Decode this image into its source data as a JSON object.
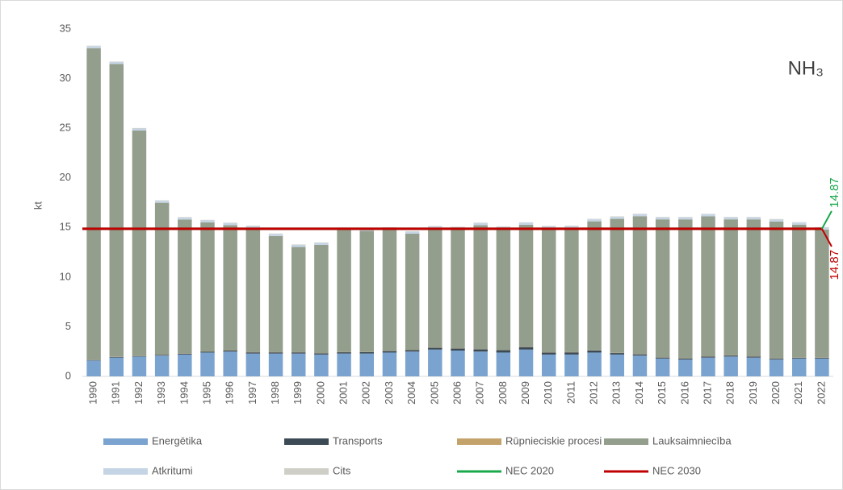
{
  "chart_data": {
    "type": "stacked_bar_line",
    "title": "NH₃",
    "y_label": "kt",
    "categories": [
      "1990",
      "1991",
      "1992",
      "1993",
      "1994",
      "1995",
      "1996",
      "1997",
      "1998",
      "1999",
      "2000",
      "2001",
      "2002",
      "2003",
      "2004",
      "2005",
      "2006",
      "2007",
      "2008",
      "2009",
      "2010",
      "2011",
      "2012",
      "2013",
      "2014",
      "2015",
      "2016",
      "2017",
      "2018",
      "2019",
      "2020",
      "2021",
      "2022"
    ],
    "ylim": [
      0,
      35
    ],
    "yticks": [
      0,
      5,
      10,
      15,
      20,
      25,
      30,
      35
    ],
    "series": [
      {
        "name": "Energētika",
        "color": "#7ba3cf",
        "kind": "bar",
        "values": [
          1.6,
          1.9,
          2.0,
          2.1,
          2.2,
          2.4,
          2.5,
          2.3,
          2.3,
          2.3,
          2.2,
          2.3,
          2.3,
          2.4,
          2.5,
          2.7,
          2.6,
          2.5,
          2.4,
          2.7,
          2.2,
          2.2,
          2.4,
          2.2,
          2.1,
          1.8,
          1.7,
          1.9,
          2.0,
          1.9,
          1.7,
          1.8,
          1.8
        ]
      },
      {
        "name": "Transports",
        "color": "#3b4a55",
        "kind": "bar",
        "values": [
          0.05,
          0.05,
          0.05,
          0.07,
          0.08,
          0.1,
          0.12,
          0.12,
          0.12,
          0.12,
          0.12,
          0.13,
          0.14,
          0.15,
          0.16,
          0.18,
          0.2,
          0.22,
          0.24,
          0.25,
          0.2,
          0.22,
          0.2,
          0.15,
          0.12,
          0.1,
          0.1,
          0.1,
          0.1,
          0.1,
          0.08,
          0.07,
          0.07
        ]
      },
      {
        "name": "Rūpnieciskie procesi",
        "color": "#c4a26c",
        "kind": "bar",
        "values": [
          0.02,
          0.02,
          0.02,
          0.02,
          0.02,
          0.02,
          0.02,
          0.02,
          0.02,
          0.02,
          0.02,
          0.02,
          0.02,
          0.02,
          0.02,
          0.02,
          0.02,
          0.02,
          0.02,
          0.02,
          0.02,
          0.02,
          0.02,
          0.02,
          0.02,
          0.02,
          0.02,
          0.02,
          0.02,
          0.02,
          0.02,
          0.02,
          0.02
        ]
      },
      {
        "name": "Lauksaimniecība",
        "color": "#949e8c",
        "kind": "bar",
        "values": [
          31.4,
          29.5,
          22.7,
          15.3,
          13.5,
          13.0,
          12.6,
          12.5,
          11.7,
          10.6,
          10.9,
          12.3,
          12.2,
          12.2,
          11.7,
          12.0,
          12.0,
          12.5,
          12.2,
          12.3,
          12.5,
          12.5,
          13.0,
          13.5,
          13.9,
          13.9,
          14.0,
          14.1,
          13.7,
          13.8,
          13.8,
          13.4,
          12.9
        ]
      },
      {
        "name": "Atkritumi",
        "color": "#c5d5e6",
        "kind": "bar",
        "values": [
          0.2,
          0.2,
          0.2,
          0.2,
          0.2,
          0.2,
          0.2,
          0.2,
          0.2,
          0.2,
          0.2,
          0.2,
          0.2,
          0.2,
          0.2,
          0.2,
          0.2,
          0.2,
          0.2,
          0.2,
          0.2,
          0.2,
          0.2,
          0.2,
          0.2,
          0.2,
          0.2,
          0.2,
          0.2,
          0.2,
          0.2,
          0.2,
          0.2
        ]
      },
      {
        "name": "Cits",
        "color": "#cfcfc8",
        "kind": "bar",
        "values": [
          0.05,
          0.05,
          0.05,
          0.05,
          0.05,
          0.05,
          0.05,
          0.05,
          0.05,
          0.05,
          0.05,
          0.05,
          0.05,
          0.05,
          0.05,
          0.05,
          0.05,
          0.05,
          0.05,
          0.05,
          0.05,
          0.05,
          0.05,
          0.05,
          0.05,
          0.05,
          0.05,
          0.05,
          0.05,
          0.05,
          0.05,
          0.05,
          0.05
        ]
      },
      {
        "name": "NEC 2020",
        "color": "#19a84b",
        "kind": "line",
        "values": [
          14.87,
          14.87,
          14.87,
          14.87,
          14.87,
          14.87,
          14.87,
          14.87,
          14.87,
          14.87,
          14.87,
          14.87,
          14.87,
          14.87,
          14.87,
          14.87,
          14.87,
          14.87,
          14.87,
          14.87,
          14.87,
          14.87,
          14.87,
          14.87,
          14.87,
          14.87,
          14.87,
          14.87,
          14.87,
          14.87,
          14.87,
          14.87,
          14.87
        ]
      },
      {
        "name": "NEC 2030",
        "color": "#c00000",
        "kind": "line",
        "values": [
          14.87,
          14.87,
          14.87,
          14.87,
          14.87,
          14.87,
          14.87,
          14.87,
          14.87,
          14.87,
          14.87,
          14.87,
          14.87,
          14.87,
          14.87,
          14.87,
          14.87,
          14.87,
          14.87,
          14.87,
          14.87,
          14.87,
          14.87,
          14.87,
          14.87,
          14.87,
          14.87,
          14.87,
          14.87,
          14.87,
          14.87,
          14.87,
          14.87
        ]
      }
    ]
  }
}
